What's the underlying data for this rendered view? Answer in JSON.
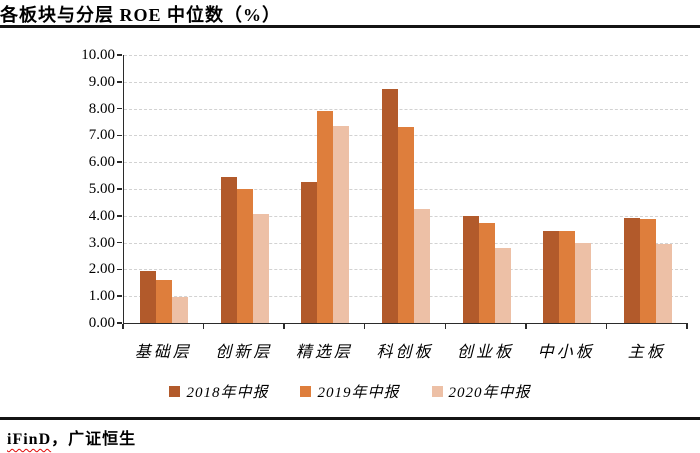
{
  "header": {
    "title": "各板块与分层 ROE 中位数（%）"
  },
  "chart_data": {
    "type": "bar",
    "title": "各板块与分层 ROE 中位数（%）",
    "categories": [
      "基础层",
      "创新层",
      "精选层",
      "科创板",
      "创业板",
      "中小板",
      "主板"
    ],
    "series": [
      {
        "name": "2018年中报",
        "color": "#B25A2B",
        "values": [
          1.95,
          5.45,
          5.28,
          8.72,
          4.0,
          3.42,
          3.93
        ]
      },
      {
        "name": "2019年中报",
        "color": "#DE7E3C",
        "values": [
          1.62,
          5.0,
          7.92,
          7.3,
          3.72,
          3.42,
          3.89
        ]
      },
      {
        "name": "2020年中报",
        "color": "#EDC0A6",
        "values": [
          0.97,
          4.05,
          7.35,
          4.25,
          2.8,
          2.98,
          2.95
        ]
      }
    ],
    "ylim": [
      0,
      10
    ],
    "ytick_step": 1,
    "ytick_labels": [
      "0.00",
      "1.00",
      "2.00",
      "3.00",
      "4.00",
      "5.00",
      "6.00",
      "7.00",
      "8.00",
      "9.00",
      "10.00"
    ],
    "xlabel": "",
    "ylabel": "",
    "grid": "horizontal-dashed",
    "legend_position": "bottom"
  },
  "footer": {
    "source_highlight": "iFinD",
    "source_rest": "，广证恒生"
  }
}
